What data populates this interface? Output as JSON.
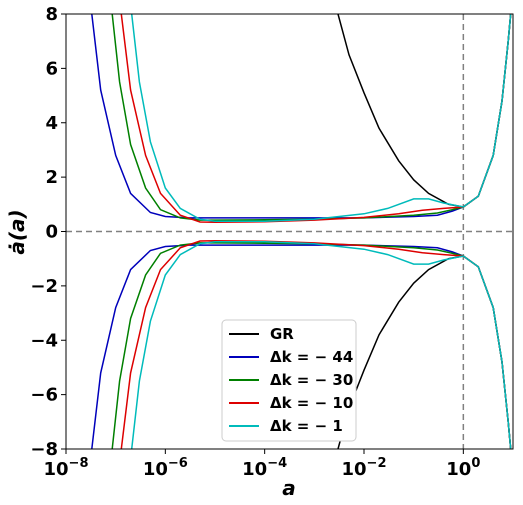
{
  "chart_data": {
    "type": "line",
    "xlabel": "a",
    "ylabel": "ȧ(a)",
    "xscale": "log",
    "xlim": [
      1e-08,
      10
    ],
    "ylim": [
      -8,
      8
    ],
    "x_ticks": [
      {
        "value": 1e-08,
        "base": "10",
        "exp": "−8"
      },
      {
        "value": 1e-06,
        "base": "10",
        "exp": "−6"
      },
      {
        "value": 0.0001,
        "base": "10",
        "exp": "−4"
      },
      {
        "value": 0.01,
        "base": "10",
        "exp": "−2"
      },
      {
        "value": 1,
        "base": "10",
        "exp": "0"
      }
    ],
    "y_ticks": [
      {
        "value": 8,
        "label": "8"
      },
      {
        "value": 6,
        "label": "6"
      },
      {
        "value": 4,
        "label": "4"
      },
      {
        "value": 2,
        "label": "2"
      },
      {
        "value": 0,
        "label": "0"
      },
      {
        "value": -2,
        "label": "−2"
      },
      {
        "value": -4,
        "label": "−4"
      },
      {
        "value": -6,
        "label": "−6"
      },
      {
        "value": -8,
        "label": "−8"
      }
    ],
    "reference_lines": [
      {
        "orientation": "horizontal",
        "value": 0,
        "style": "dashed",
        "color": "#808080"
      },
      {
        "orientation": "vertical",
        "value": 1,
        "style": "dashed",
        "color": "#808080"
      }
    ],
    "grid": false,
    "legend_position": "lower-center",
    "series": [
      {
        "name": "GR",
        "color": "#000000",
        "points": [
          [
            0.003,
            8.0
          ],
          [
            0.005,
            6.5
          ],
          [
            0.01,
            5.1
          ],
          [
            0.02,
            3.8
          ],
          [
            0.05,
            2.6
          ],
          [
            0.1,
            1.9
          ],
          [
            0.2,
            1.4
          ],
          [
            0.5,
            1.0
          ],
          [
            1,
            0.9
          ],
          [
            2,
            1.3
          ],
          [
            4,
            2.8
          ],
          [
            6,
            4.8
          ],
          [
            8,
            7.0
          ],
          [
            9,
            8.0
          ]
        ]
      },
      {
        "name": "Δk = − 44",
        "color": "#0000bb",
        "points": [
          [
            3.3e-08,
            8.0
          ],
          [
            5e-08,
            5.2
          ],
          [
            1e-07,
            2.8
          ],
          [
            2e-07,
            1.4
          ],
          [
            5e-07,
            0.7
          ],
          [
            1e-06,
            0.55
          ],
          [
            3e-06,
            0.5
          ],
          [
            1e-05,
            0.5
          ],
          [
            0.0001,
            0.5
          ],
          [
            0.001,
            0.5
          ],
          [
            0.01,
            0.5
          ],
          [
            0.1,
            0.55
          ],
          [
            0.3,
            0.6
          ],
          [
            0.6,
            0.75
          ],
          [
            1,
            0.9
          ],
          [
            2,
            1.3
          ],
          [
            4,
            2.8
          ],
          [
            6,
            4.8
          ],
          [
            8,
            7.0
          ],
          [
            9,
            8.0
          ]
        ]
      },
      {
        "name": "Δk = − 30",
        "color": "#008000",
        "points": [
          [
            8.5e-08,
            8.0
          ],
          [
            1.2e-07,
            5.5
          ],
          [
            2e-07,
            3.2
          ],
          [
            4e-07,
            1.6
          ],
          [
            8e-07,
            0.8
          ],
          [
            2e-06,
            0.5
          ],
          [
            5e-06,
            0.42
          ],
          [
            1e-05,
            0.42
          ],
          [
            0.0001,
            0.43
          ],
          [
            0.001,
            0.45
          ],
          [
            0.01,
            0.5
          ],
          [
            0.1,
            0.6
          ],
          [
            0.3,
            0.68
          ],
          [
            0.6,
            0.8
          ],
          [
            1,
            0.9
          ],
          [
            2,
            1.3
          ],
          [
            4,
            2.8
          ],
          [
            6,
            4.8
          ],
          [
            8,
            7.0
          ],
          [
            9,
            8.0
          ]
        ]
      },
      {
        "name": "Δk = − 10",
        "color": "#dd0000",
        "points": [
          [
            1.3e-07,
            8.0
          ],
          [
            2e-07,
            5.2
          ],
          [
            4e-07,
            2.8
          ],
          [
            8e-07,
            1.4
          ],
          [
            2e-06,
            0.6
          ],
          [
            5e-06,
            0.35
          ],
          [
            1e-05,
            0.34
          ],
          [
            0.0001,
            0.36
          ],
          [
            0.001,
            0.42
          ],
          [
            0.01,
            0.52
          ],
          [
            0.05,
            0.65
          ],
          [
            0.15,
            0.78
          ],
          [
            0.4,
            0.85
          ],
          [
            1,
            0.9
          ],
          [
            2,
            1.3
          ],
          [
            4,
            2.8
          ],
          [
            6,
            4.8
          ],
          [
            8,
            7.0
          ],
          [
            9,
            8.0
          ]
        ]
      },
      {
        "name": "Δk = − 1",
        "color": "#00bbbb",
        "points": [
          [
            2.1e-07,
            8.0
          ],
          [
            3e-07,
            5.5
          ],
          [
            5e-07,
            3.3
          ],
          [
            1e-06,
            1.6
          ],
          [
            2e-06,
            0.85
          ],
          [
            5e-06,
            0.45
          ],
          [
            1e-05,
            0.38
          ],
          [
            0.0001,
            0.38
          ],
          [
            0.001,
            0.45
          ],
          [
            0.01,
            0.65
          ],
          [
            0.03,
            0.85
          ],
          [
            0.1,
            1.2
          ],
          [
            0.2,
            1.2
          ],
          [
            0.4,
            1.05
          ],
          [
            1,
            0.9
          ],
          [
            2,
            1.3
          ],
          [
            4,
            2.8
          ],
          [
            6,
            4.8
          ],
          [
            8,
            7.0
          ],
          [
            9,
            8.0
          ]
        ]
      }
    ],
    "symmetry_note": ""
  }
}
